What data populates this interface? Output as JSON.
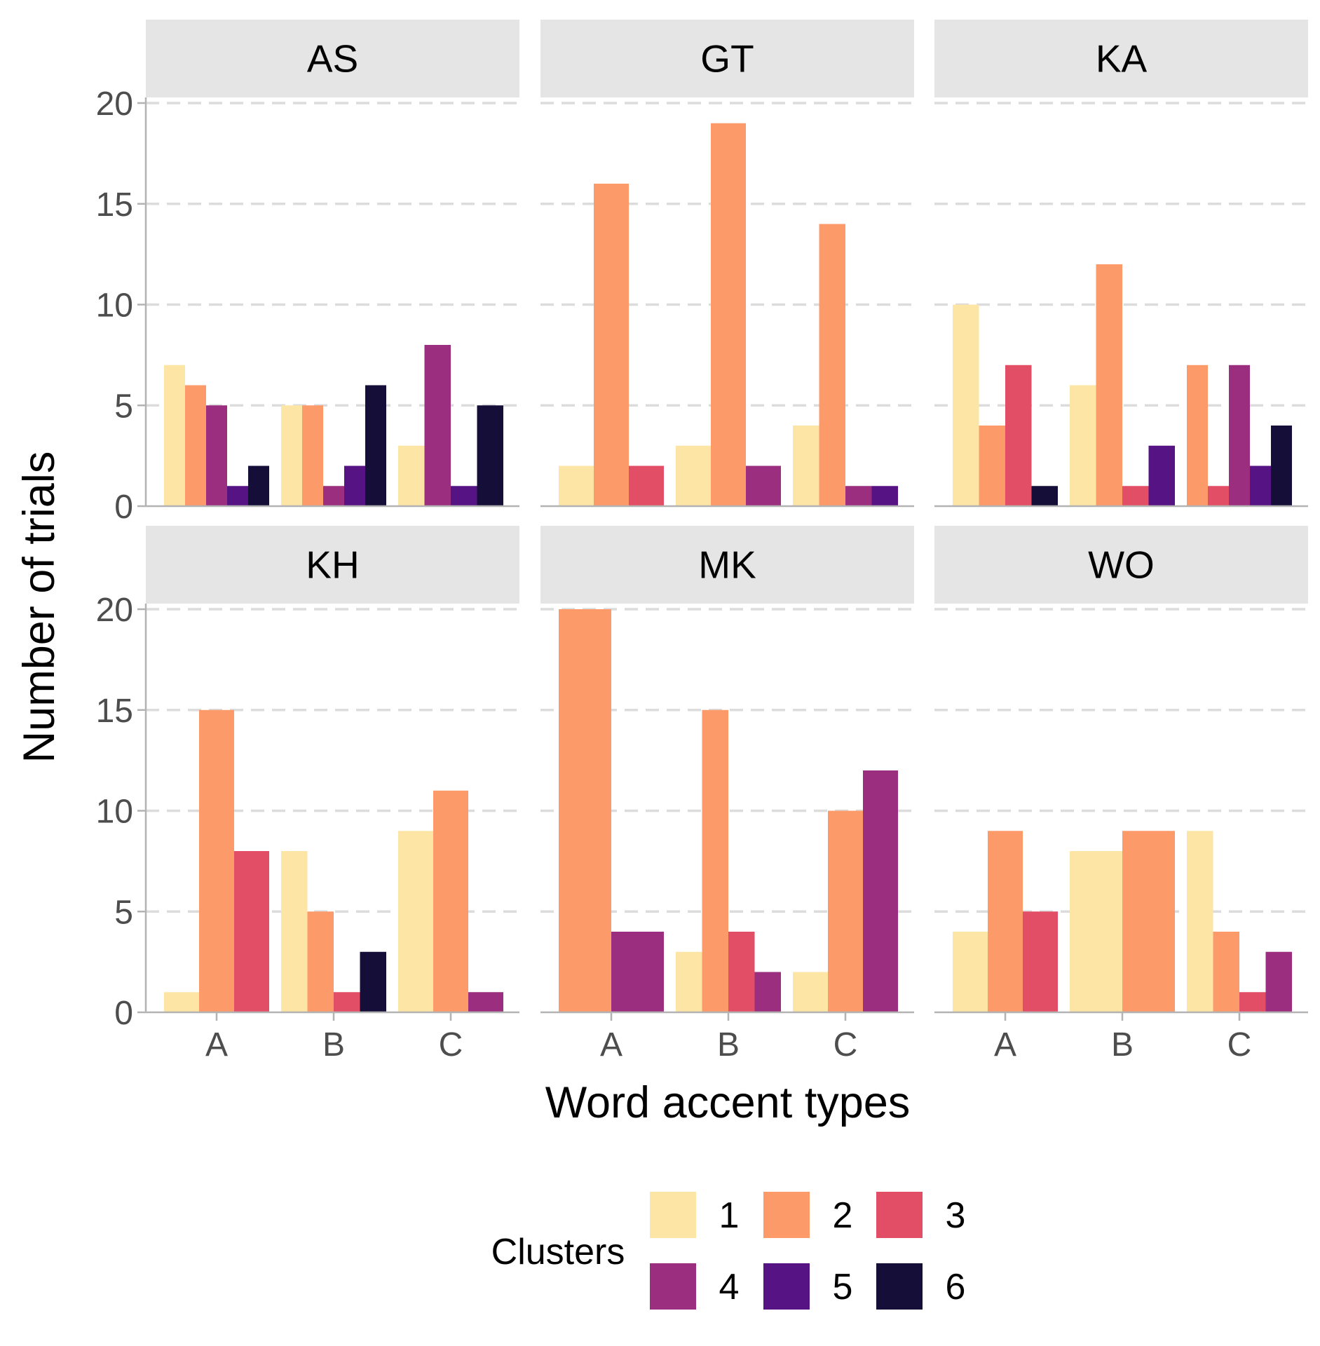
{
  "chart_data": {
    "type": "bar",
    "xlabel": "Word accent types",
    "ylabel": "Number of trials",
    "categories": [
      "A",
      "B",
      "C"
    ],
    "yticks": [
      "0",
      "5",
      "10",
      "15",
      "20"
    ],
    "ylim": [
      0,
      20
    ],
    "grid": "horizontal dashed",
    "legend": {
      "title": "Clusters",
      "position": "bottom",
      "entries": [
        {
          "label": "1",
          "color": "#FDE5A5"
        },
        {
          "label": "2",
          "color": "#FC9A6A"
        },
        {
          "label": "3",
          "color": "#E24E65"
        },
        {
          "label": "4",
          "color": "#9B2E7F"
        },
        {
          "label": "5",
          "color": "#561383"
        },
        {
          "label": "6",
          "color": "#150E38"
        }
      ]
    },
    "facets": [
      {
        "name": "AS",
        "bars": [
          {
            "cat": "A",
            "cluster": "1",
            "value": 7
          },
          {
            "cat": "A",
            "cluster": "2",
            "value": 6
          },
          {
            "cat": "A",
            "cluster": "4",
            "value": 5
          },
          {
            "cat": "A",
            "cluster": "5",
            "value": 1
          },
          {
            "cat": "A",
            "cluster": "6",
            "value": 2
          },
          {
            "cat": "B",
            "cluster": "1",
            "value": 5
          },
          {
            "cat": "B",
            "cluster": "2",
            "value": 5
          },
          {
            "cat": "B",
            "cluster": "4",
            "value": 1
          },
          {
            "cat": "B",
            "cluster": "5",
            "value": 2
          },
          {
            "cat": "B",
            "cluster": "6",
            "value": 6
          },
          {
            "cat": "C",
            "cluster": "1",
            "value": 3
          },
          {
            "cat": "C",
            "cluster": "4",
            "value": 8
          },
          {
            "cat": "C",
            "cluster": "5",
            "value": 1
          },
          {
            "cat": "C",
            "cluster": "6",
            "value": 5
          }
        ]
      },
      {
        "name": "GT",
        "bars": [
          {
            "cat": "A",
            "cluster": "1",
            "value": 2
          },
          {
            "cat": "A",
            "cluster": "2",
            "value": 16
          },
          {
            "cat": "A",
            "cluster": "3",
            "value": 2
          },
          {
            "cat": "B",
            "cluster": "1",
            "value": 3
          },
          {
            "cat": "B",
            "cluster": "2",
            "value": 19
          },
          {
            "cat": "B",
            "cluster": "4",
            "value": 2
          },
          {
            "cat": "C",
            "cluster": "1",
            "value": 4
          },
          {
            "cat": "C",
            "cluster": "2",
            "value": 14
          },
          {
            "cat": "C",
            "cluster": "4",
            "value": 1
          },
          {
            "cat": "C",
            "cluster": "5",
            "value": 1
          }
        ]
      },
      {
        "name": "KA",
        "bars": [
          {
            "cat": "A",
            "cluster": "1",
            "value": 10
          },
          {
            "cat": "A",
            "cluster": "2",
            "value": 4
          },
          {
            "cat": "A",
            "cluster": "3",
            "value": 7
          },
          {
            "cat": "A",
            "cluster": "6",
            "value": 1
          },
          {
            "cat": "B",
            "cluster": "1",
            "value": 6
          },
          {
            "cat": "B",
            "cluster": "2",
            "value": 12
          },
          {
            "cat": "B",
            "cluster": "3",
            "value": 1
          },
          {
            "cat": "B",
            "cluster": "5",
            "value": 3
          },
          {
            "cat": "C",
            "cluster": "2",
            "value": 7
          },
          {
            "cat": "C",
            "cluster": "3",
            "value": 1
          },
          {
            "cat": "C",
            "cluster": "4",
            "value": 7
          },
          {
            "cat": "C",
            "cluster": "5",
            "value": 2
          },
          {
            "cat": "C",
            "cluster": "6",
            "value": 4
          }
        ]
      },
      {
        "name": "KH",
        "bars": [
          {
            "cat": "A",
            "cluster": "1",
            "value": 1
          },
          {
            "cat": "A",
            "cluster": "2",
            "value": 15
          },
          {
            "cat": "A",
            "cluster": "3",
            "value": 8
          },
          {
            "cat": "B",
            "cluster": "1",
            "value": 8
          },
          {
            "cat": "B",
            "cluster": "2",
            "value": 5
          },
          {
            "cat": "B",
            "cluster": "3",
            "value": 1
          },
          {
            "cat": "B",
            "cluster": "6",
            "value": 3
          },
          {
            "cat": "C",
            "cluster": "1",
            "value": 9
          },
          {
            "cat": "C",
            "cluster": "2",
            "value": 11
          },
          {
            "cat": "C",
            "cluster": "4",
            "value": 1
          }
        ]
      },
      {
        "name": "MK",
        "bars": [
          {
            "cat": "A",
            "cluster": "2",
            "value": 20
          },
          {
            "cat": "A",
            "cluster": "4",
            "value": 4
          },
          {
            "cat": "B",
            "cluster": "1",
            "value": 3
          },
          {
            "cat": "B",
            "cluster": "2",
            "value": 15
          },
          {
            "cat": "B",
            "cluster": "3",
            "value": 4
          },
          {
            "cat": "B",
            "cluster": "4",
            "value": 2
          },
          {
            "cat": "C",
            "cluster": "1",
            "value": 2
          },
          {
            "cat": "C",
            "cluster": "2",
            "value": 10
          },
          {
            "cat": "C",
            "cluster": "4",
            "value": 12
          }
        ]
      },
      {
        "name": "WO",
        "bars": [
          {
            "cat": "A",
            "cluster": "1",
            "value": 4
          },
          {
            "cat": "A",
            "cluster": "2",
            "value": 9
          },
          {
            "cat": "A",
            "cluster": "3",
            "value": 5
          },
          {
            "cat": "B",
            "cluster": "1",
            "value": 8
          },
          {
            "cat": "B",
            "cluster": "2",
            "value": 9
          },
          {
            "cat": "C",
            "cluster": "1",
            "value": 9
          },
          {
            "cat": "C",
            "cluster": "2",
            "value": 4
          },
          {
            "cat": "C",
            "cluster": "3",
            "value": 1
          },
          {
            "cat": "C",
            "cluster": "4",
            "value": 3
          }
        ]
      }
    ]
  }
}
